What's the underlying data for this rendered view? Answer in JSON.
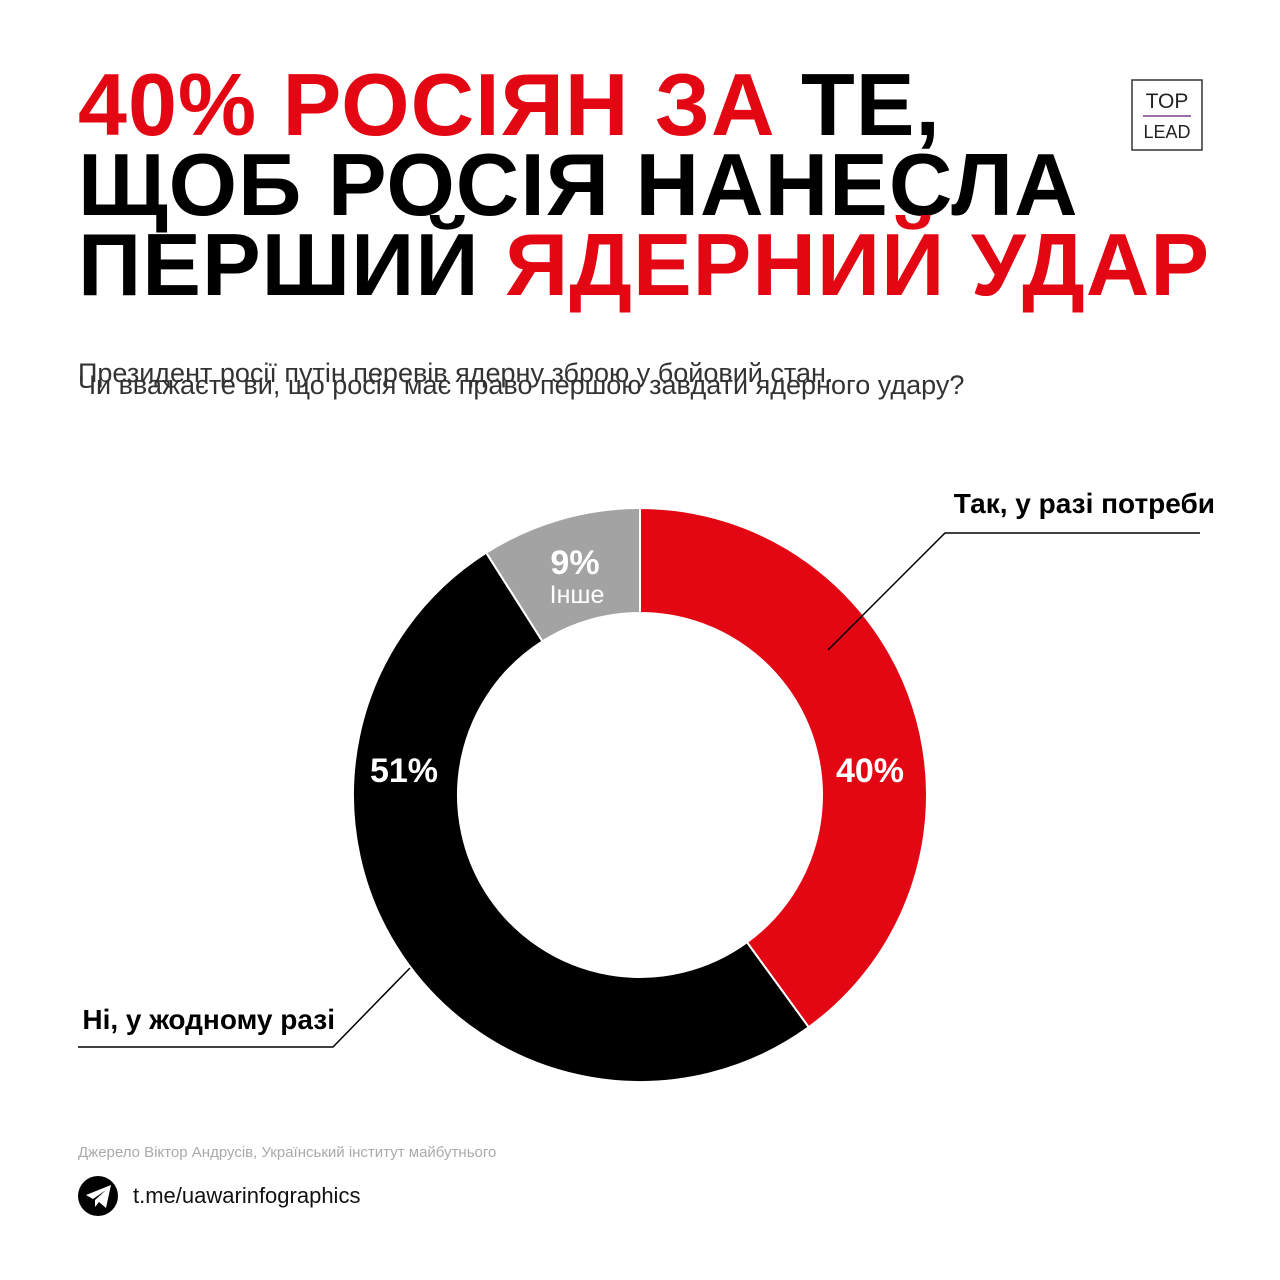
{
  "chart_data": {
    "type": "pie",
    "title": [
      [
        {
          "text": "40% РОСІЯН ЗА",
          "color": "#e30613"
        },
        {
          "text": " ТЕ,",
          "color": "#000000"
        }
      ],
      [
        {
          "text": "ЩОБ РОСІЯ НАНЕСЛА",
          "color": "#000000"
        }
      ],
      [
        {
          "text": "ПЕРШИЙ ",
          "color": "#000000"
        },
        {
          "text": "ЯДЕРНИЙ УДАР",
          "color": "#e30613"
        }
      ]
    ],
    "subtitle": [
      "Президент росії путін перевів ядерну зброю у бойовий стан.",
      "Чи вважаєте ви, що росія має право першою завдати ядерного удару?"
    ],
    "categories": [
      "Так, у разі потреби",
      "Ні, у жодному разі",
      "Інше"
    ],
    "values": [
      40,
      51,
      9
    ],
    "value_labels": [
      "40%",
      "51%",
      "9%"
    ],
    "colors": [
      "#e30613",
      "#000000",
      "#a3a3a3"
    ]
  },
  "source": "Джерело Віктор Андрусів, Український інститут майбутнього",
  "link": "t.me/uawarinfographics",
  "logo": [
    "TOP",
    "LEAD"
  ]
}
